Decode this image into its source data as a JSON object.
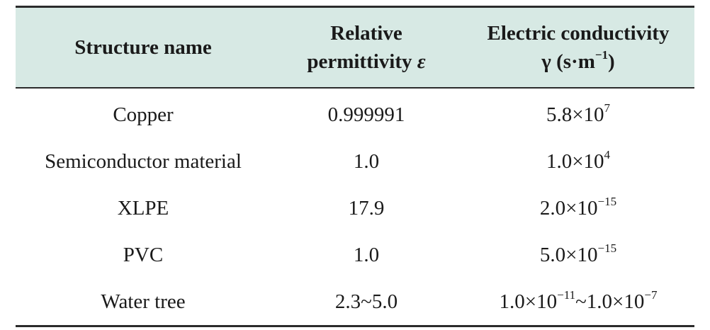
{
  "table": {
    "headers": {
      "structure": "Structure name",
      "permittivity_line1": "Relative",
      "permittivity_line2": "permittivity",
      "permittivity_symbol": "ε",
      "conductivity_line1": "Electric conductivity",
      "conductivity_unit_pre": "γ (s·m",
      "conductivity_unit_exp": "−1",
      "conductivity_unit_post": ")"
    },
    "rows": [
      {
        "name": "Copper",
        "permittivity": "0.999991",
        "cond_a": "5.8×10",
        "cond_a_exp": "7",
        "cond_sep": "",
        "cond_b": "",
        "cond_b_exp": ""
      },
      {
        "name": "Semiconductor material",
        "permittivity": "1.0",
        "cond_a": "1.0×10",
        "cond_a_exp": "4",
        "cond_sep": "",
        "cond_b": "",
        "cond_b_exp": ""
      },
      {
        "name": "XLPE",
        "permittivity": "17.9",
        "cond_a": "2.0×10",
        "cond_a_exp": "−15",
        "cond_sep": "",
        "cond_b": "",
        "cond_b_exp": ""
      },
      {
        "name": "PVC",
        "permittivity": "1.0",
        "cond_a": "5.0×10",
        "cond_a_exp": "−15",
        "cond_sep": "",
        "cond_b": "",
        "cond_b_exp": ""
      },
      {
        "name": "Water tree",
        "permittivity": "2.3~5.0",
        "cond_a": "1.0×10",
        "cond_a_exp": "−11",
        "cond_sep": "~",
        "cond_b": "1.0×10",
        "cond_b_exp": "−7"
      }
    ]
  }
}
